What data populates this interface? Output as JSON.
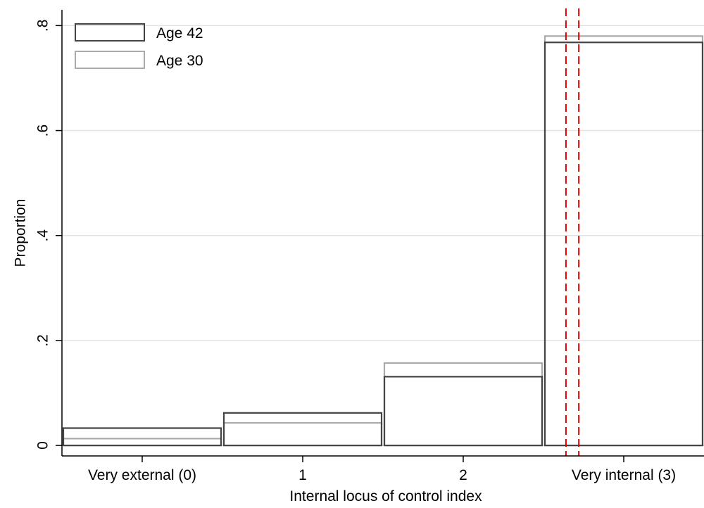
{
  "chart_data": {
    "type": "bar",
    "categories": [
      "Very external (0)",
      "1",
      "2",
      "Very internal (3)"
    ],
    "series": [
      {
        "name": "Age 42",
        "values": [
          0.033,
          0.062,
          0.131,
          0.768
        ],
        "color": "#444444"
      },
      {
        "name": "Age 30",
        "values": [
          0.013,
          0.043,
          0.157,
          0.78
        ],
        "color": "#aaaaaa"
      }
    ],
    "reference_lines": {
      "x": [
        2.64,
        2.72
      ],
      "style": "dashed",
      "color": "#e00000"
    },
    "xlabel": "Internal locus of control index",
    "ylabel": "Proportion",
    "yticks": [
      0,
      0.2,
      0.4,
      0.6,
      0.8
    ],
    "ytick_labels": [
      "0",
      ".2",
      ".4",
      ".6",
      ".8"
    ],
    "xticks": [
      0,
      1,
      2,
      3
    ],
    "xtick_labels": [
      "Very external (0)",
      "1",
      "2",
      "Very internal (3)"
    ],
    "xlim": [
      -0.5,
      3.5
    ],
    "ylim": [
      -0.02,
      0.83
    ],
    "grid": true,
    "legend_position": "top-left"
  }
}
